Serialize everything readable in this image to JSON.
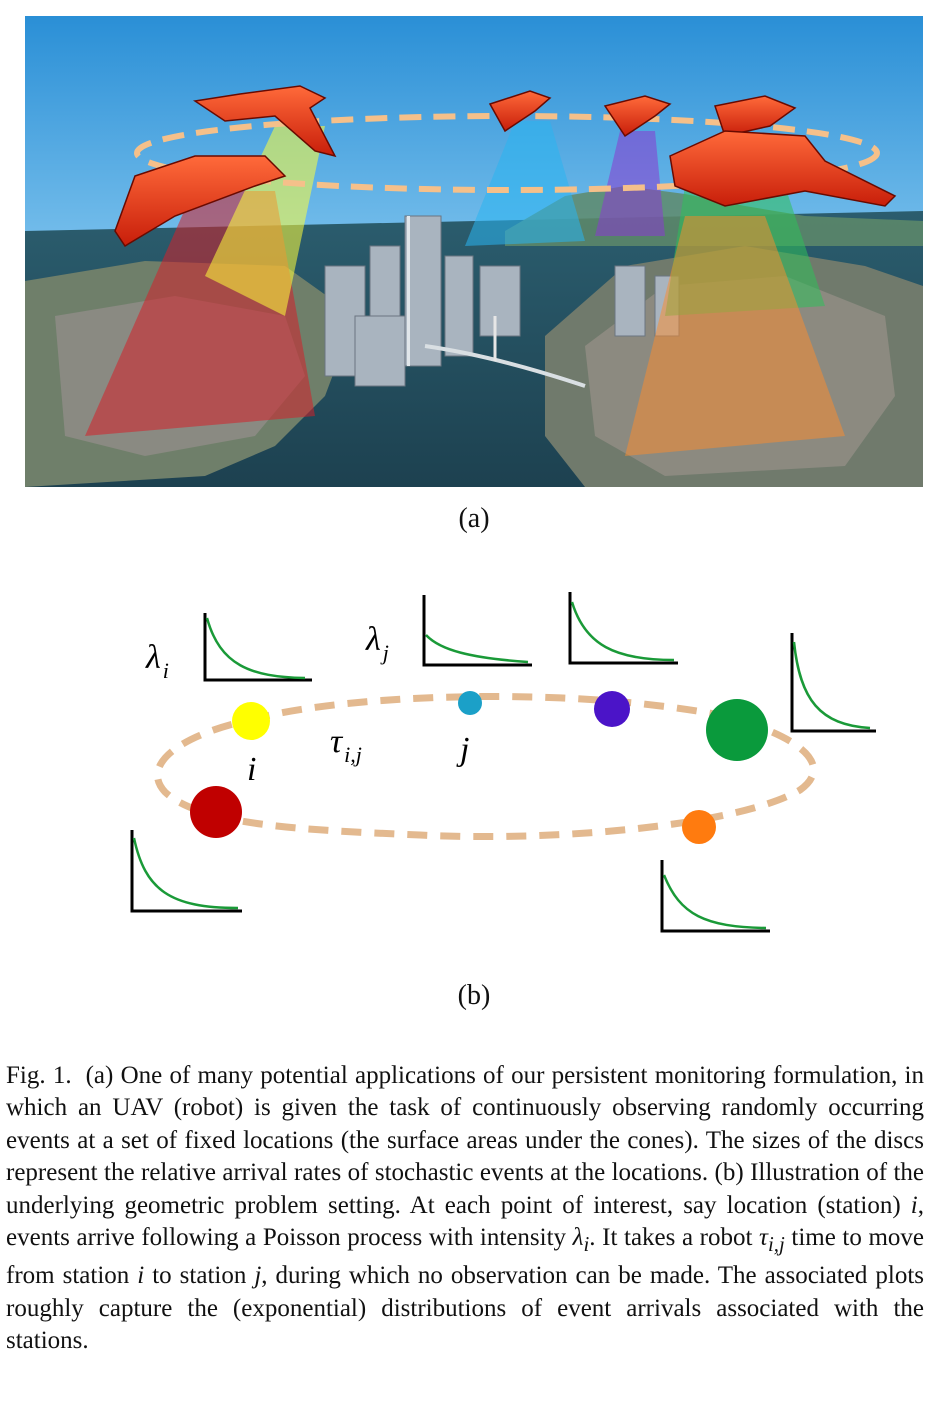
{
  "figure_a": {
    "sublabel": "(a)"
  },
  "figure_b": {
    "sublabel": "(b)",
    "lambda_i": "λ",
    "lambda_i_sub": "i",
    "lambda_j": "λ",
    "lambda_j_sub": "j",
    "tau": "τ",
    "tau_sub": "i,j",
    "station_i": "i",
    "station_j": "j",
    "colors": {
      "route": "#e3b98f",
      "yellow": "#ffff00",
      "red": "#c00000",
      "cyan": "#1ba0c8",
      "purple": "#4b14c8",
      "green": "#0a9a3c",
      "orange": "#ff7b0f",
      "curve": "#1a9a38"
    }
  },
  "caption": {
    "fig_label": "Fig. 1.",
    "part1": "(a) One of many potential applications of our persistent monitoring formulation, in which an UAV (robot) is given the task of continuously observing randomly occurring events at a set of fixed locations (the surface areas under the cones). The sizes of the discs represent the relative arrival rates of stochastic events at the locations. (b) Illustration of the underlying geometric problem setting. At each point of interest, say location (station) ",
    "i1": "i",
    "part2": ", events arrive following a Poisson process with intensity ",
    "lambda": "λ",
    "lambda_sub": "i",
    "part3": ". It takes a robot ",
    "tau": "τ",
    "tau_sub": "i,j",
    "part4": " time to move from station ",
    "i2": "i",
    "part5": " to station ",
    "j1": "j",
    "part6": ", during which no observation can be made. The associated plots roughly capture the (exponential) distributions of event arrivals associated with the stations."
  }
}
